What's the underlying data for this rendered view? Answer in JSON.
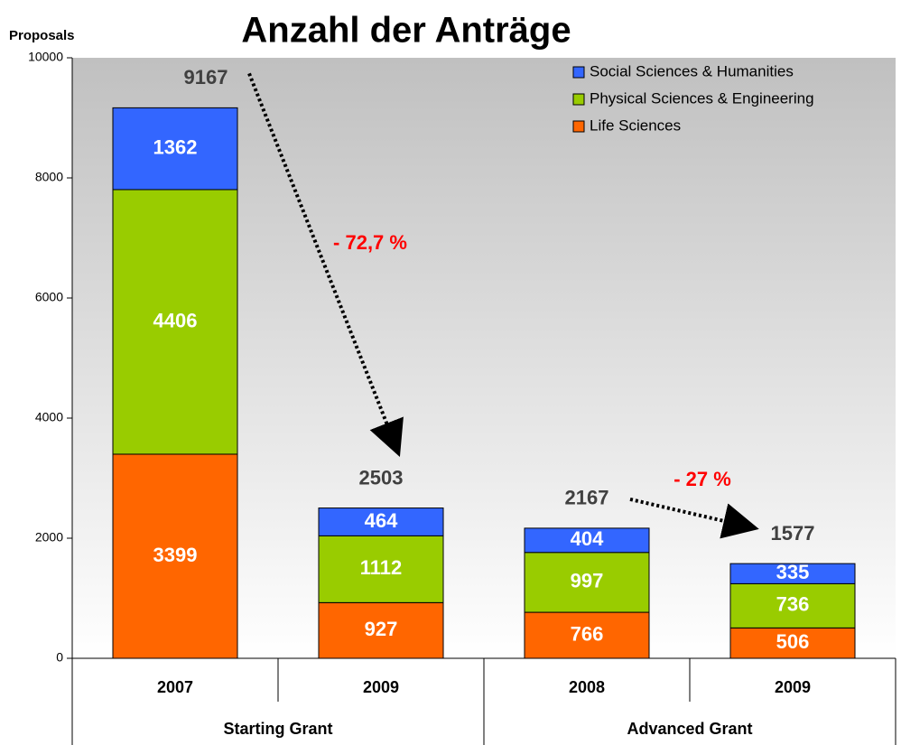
{
  "chart_data": {
    "type": "stacked_bar",
    "title": "Anzahl der Anträge",
    "y_label": "Proposals",
    "categories": [
      "2007",
      "2009",
      "2008",
      "2009"
    ],
    "groups": [
      "Starting Grant",
      "Advanced Grant"
    ],
    "series": [
      {
        "name": "Life Sciences",
        "color": "#ff6600",
        "values": [
          3399,
          927,
          766,
          506
        ]
      },
      {
        "name": "Physical Sciences & Engineering",
        "color": "#99cc00",
        "values": [
          4406,
          1112,
          997,
          736
        ]
      },
      {
        "name": "Social Sciences & Humanities",
        "color": "#3366ff",
        "values": [
          1362,
          464,
          404,
          335
        ]
      }
    ],
    "totals": [
      9167,
      2503,
      2167,
      1577
    ],
    "annotations": [
      "- 72,7 %",
      "- 27 %"
    ],
    "annotation_color": "#ff0000",
    "ylim": [
      0,
      10000
    ],
    "yticks": [
      0,
      2000,
      4000,
      6000,
      8000,
      10000
    ],
    "legend": "top-right"
  }
}
